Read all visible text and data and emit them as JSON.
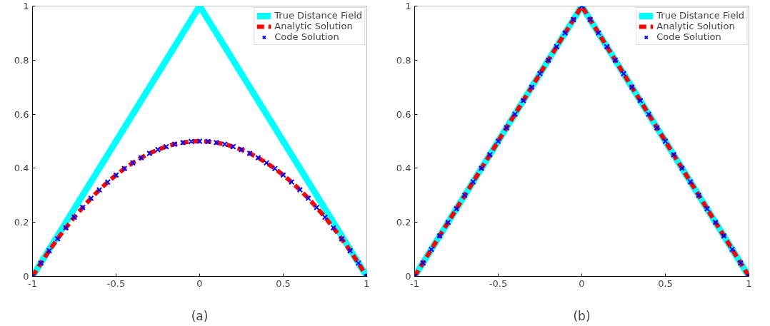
{
  "chart_data": [
    {
      "type": "line",
      "xlabel": "(a)",
      "xlim": [
        -1,
        1
      ],
      "ylim": [
        0,
        1
      ],
      "xticks": [
        -1,
        -0.5,
        0,
        0.5,
        1
      ],
      "yticks": [
        0,
        0.2,
        0.4,
        0.6,
        0.8,
        1
      ],
      "grid": false,
      "legend": "top right",
      "series": [
        {
          "name": "True Distance Field",
          "line_style": "solid",
          "color": "#00ffff",
          "x": [
            -1,
            0,
            1
          ],
          "values": [
            0,
            1,
            0
          ]
        },
        {
          "name": "Analytic Solution",
          "line_style": "dashed",
          "color": "#ff0000",
          "x": [
            -1,
            -0.95,
            -0.9,
            -0.85,
            -0.8,
            -0.75,
            -0.7,
            -0.65,
            -0.6,
            -0.55,
            -0.5,
            -0.45,
            -0.4,
            -0.35,
            -0.3,
            -0.25,
            -0.2,
            -0.15,
            -0.1,
            -0.05,
            0,
            0.05,
            0.1,
            0.15,
            0.2,
            0.25,
            0.3,
            0.35,
            0.4,
            0.45,
            0.5,
            0.55,
            0.6,
            0.65,
            0.7,
            0.75,
            0.8,
            0.85,
            0.9,
            0.95,
            1
          ],
          "values": [
            0,
            0.049,
            0.095,
            0.139,
            0.18,
            0.219,
            0.255,
            0.289,
            0.32,
            0.349,
            0.375,
            0.399,
            0.42,
            0.439,
            0.455,
            0.469,
            0.48,
            0.489,
            0.495,
            0.499,
            0.5,
            0.499,
            0.495,
            0.489,
            0.48,
            0.469,
            0.455,
            0.439,
            0.42,
            0.399,
            0.375,
            0.349,
            0.32,
            0.289,
            0.255,
            0.219,
            0.18,
            0.139,
            0.095,
            0.049,
            0
          ]
        },
        {
          "name": "Code Solution",
          "type": "scatter",
          "marker": "cross",
          "color": "#0000ff",
          "x": [
            -1,
            -0.95,
            -0.9,
            -0.85,
            -0.8,
            -0.75,
            -0.7,
            -0.65,
            -0.6,
            -0.55,
            -0.5,
            -0.45,
            -0.4,
            -0.35,
            -0.3,
            -0.25,
            -0.2,
            -0.15,
            -0.1,
            -0.05,
            0,
            0.05,
            0.1,
            0.15,
            0.2,
            0.25,
            0.3,
            0.35,
            0.4,
            0.45,
            0.5,
            0.55,
            0.6,
            0.65,
            0.7,
            0.75,
            0.8,
            0.85,
            0.9,
            0.95,
            1
          ],
          "values": [
            0,
            0.049,
            0.095,
            0.139,
            0.18,
            0.219,
            0.255,
            0.289,
            0.32,
            0.349,
            0.375,
            0.399,
            0.42,
            0.439,
            0.455,
            0.469,
            0.48,
            0.489,
            0.495,
            0.499,
            0.5,
            0.499,
            0.495,
            0.489,
            0.48,
            0.469,
            0.455,
            0.439,
            0.42,
            0.399,
            0.375,
            0.349,
            0.32,
            0.289,
            0.255,
            0.219,
            0.18,
            0.139,
            0.095,
            0.049,
            0
          ]
        }
      ]
    },
    {
      "type": "line",
      "xlabel": "(b)",
      "xlim": [
        -1,
        1
      ],
      "ylim": [
        0,
        1
      ],
      "xticks": [
        -1,
        -0.5,
        0,
        0.5,
        1
      ],
      "yticks": [
        0,
        0.2,
        0.4,
        0.6,
        0.8,
        1
      ],
      "grid": false,
      "legend": "top right",
      "series": [
        {
          "name": "True Distance Field",
          "line_style": "solid",
          "color": "#00ffff",
          "x": [
            -1,
            0,
            1
          ],
          "values": [
            0,
            1,
            0
          ]
        },
        {
          "name": "Analytic Solution",
          "line_style": "dashed",
          "color": "#ff0000",
          "x": [
            -1,
            0,
            1
          ],
          "values": [
            0,
            1,
            0
          ]
        },
        {
          "name": "Code Solution",
          "type": "scatter",
          "marker": "cross",
          "color": "#0000ff",
          "x": [
            -1,
            -0.95,
            -0.9,
            -0.85,
            -0.8,
            -0.75,
            -0.7,
            -0.65,
            -0.6,
            -0.55,
            -0.5,
            -0.45,
            -0.4,
            -0.35,
            -0.3,
            -0.25,
            -0.2,
            -0.15,
            -0.1,
            -0.05,
            0,
            0.05,
            0.1,
            0.15,
            0.2,
            0.25,
            0.3,
            0.35,
            0.4,
            0.45,
            0.5,
            0.55,
            0.6,
            0.65,
            0.7,
            0.75,
            0.8,
            0.85,
            0.9,
            0.95,
            1
          ],
          "values": [
            0,
            0.05,
            0.1,
            0.15,
            0.2,
            0.25,
            0.3,
            0.35,
            0.4,
            0.45,
            0.5,
            0.55,
            0.6,
            0.65,
            0.7,
            0.75,
            0.8,
            0.85,
            0.9,
            0.95,
            1,
            0.95,
            0.9,
            0.85,
            0.8,
            0.75,
            0.7,
            0.65,
            0.6,
            0.55,
            0.5,
            0.45,
            0.4,
            0.35,
            0.3,
            0.25,
            0.2,
            0.15,
            0.1,
            0.05,
            0
          ]
        }
      ]
    }
  ]
}
